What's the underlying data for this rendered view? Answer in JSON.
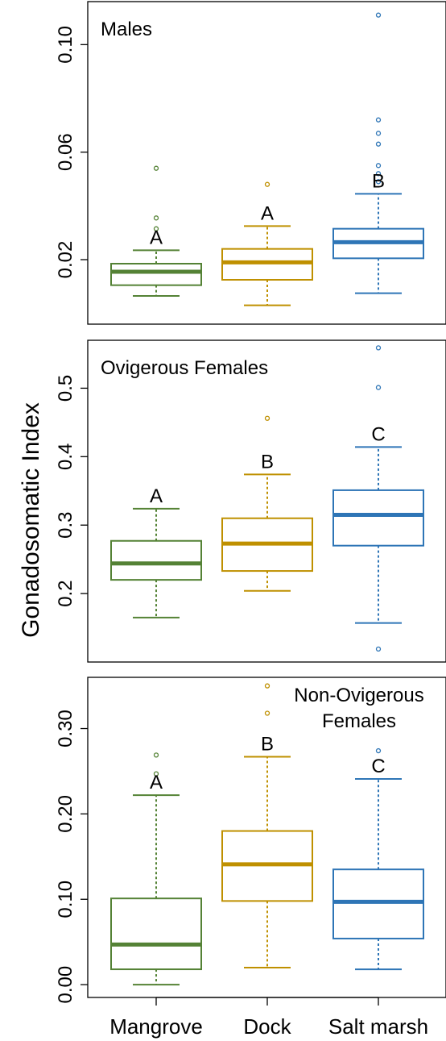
{
  "chart_data": [
    {
      "type": "box",
      "panel_label": "Males",
      "ylim": [
        -0.004,
        0.116
      ],
      "yticks": [
        0.02,
        0.06,
        0.1
      ],
      "ytick_labels": [
        "0.02",
        "0.06",
        "0.10"
      ],
      "categories": [
        "Mangrove",
        "Dock",
        "Salt marsh"
      ],
      "series": [
        {
          "category": "Mangrove",
          "color": "#548235",
          "whisker_low": 0.0065,
          "q1": 0.0105,
          "median": 0.0155,
          "q3": 0.0185,
          "whisker_high": 0.0235,
          "outliers": [
            0.0315,
            0.0355,
            0.054
          ],
          "letter": "A"
        },
        {
          "category": "Dock",
          "color": "#BF9000",
          "whisker_low": 0.003,
          "q1": 0.0125,
          "median": 0.019,
          "q3": 0.024,
          "whisker_high": 0.0325,
          "outliers": [
            0.048
          ],
          "letter": "A"
        },
        {
          "category": "Salt marsh",
          "color": "#2E75B6",
          "whisker_low": 0.0075,
          "q1": 0.0205,
          "median": 0.0265,
          "q3": 0.0315,
          "whisker_high": 0.0445,
          "outliers": [
            0.049,
            0.052,
            0.055,
            0.063,
            0.067,
            0.072,
            0.111
          ],
          "letter": "B"
        }
      ]
    },
    {
      "type": "box",
      "panel_label": "Ovigerous Females",
      "ylim": [
        0.1,
        0.57
      ],
      "yticks": [
        0.2,
        0.3,
        0.4,
        0.5
      ],
      "ytick_labels": [
        "0.2",
        "0.3",
        "0.4",
        "0.5"
      ],
      "categories": [
        "Mangrove",
        "Dock",
        "Salt marsh"
      ],
      "series": [
        {
          "category": "Mangrove",
          "color": "#548235",
          "whisker_low": 0.165,
          "q1": 0.22,
          "median": 0.244,
          "q3": 0.277,
          "whisker_high": 0.324,
          "outliers": [],
          "letter": "A"
        },
        {
          "category": "Dock",
          "color": "#BF9000",
          "whisker_low": 0.204,
          "q1": 0.233,
          "median": 0.273,
          "q3": 0.31,
          "whisker_high": 0.374,
          "outliers": [
            0.456
          ],
          "letter": "B"
        },
        {
          "category": "Salt marsh",
          "color": "#2E75B6",
          "whisker_low": 0.157,
          "q1": 0.27,
          "median": 0.315,
          "q3": 0.351,
          "whisker_high": 0.414,
          "outliers": [
            0.119,
            0.501,
            0.559
          ],
          "letter": "C"
        }
      ]
    },
    {
      "type": "box",
      "panel_label": "Non-Ovigerous Females",
      "panel_label_lines": [
        "Non-Ovigerous",
        "Females"
      ],
      "ylim": [
        -0.015,
        0.36
      ],
      "yticks": [
        0.0,
        0.1,
        0.2,
        0.3
      ],
      "ytick_labels": [
        "0.00",
        "0.10",
        "0.20",
        "0.30"
      ],
      "categories": [
        "Mangrove",
        "Dock",
        "Salt marsh"
      ],
      "series": [
        {
          "category": "Mangrove",
          "color": "#548235",
          "whisker_low": 0.0,
          "q1": 0.018,
          "median": 0.047,
          "q3": 0.101,
          "whisker_high": 0.222,
          "outliers": [
            0.247,
            0.269
          ],
          "letter": "A"
        },
        {
          "category": "Dock",
          "color": "#BF9000",
          "whisker_low": 0.02,
          "q1": 0.098,
          "median": 0.141,
          "q3": 0.18,
          "whisker_high": 0.267,
          "outliers": [
            0.318,
            0.35
          ],
          "letter": "B"
        },
        {
          "category": "Salt marsh",
          "color": "#2E75B6",
          "whisker_low": 0.018,
          "q1": 0.054,
          "median": 0.097,
          "q3": 0.135,
          "whisker_high": 0.241,
          "outliers": [
            0.274
          ],
          "letter": "C"
        }
      ]
    }
  ],
  "ylabel": "Gonadosomatic Index",
  "xlabels": [
    "Mangrove",
    "Dock",
    "Salt marsh"
  ]
}
